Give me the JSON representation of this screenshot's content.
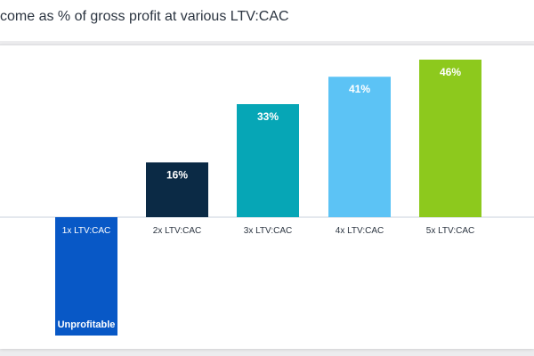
{
  "title": "come as % of gross profit at various LTV:CAC",
  "colors": {
    "background": "#ececee",
    "panel": "#ffffff",
    "axis": "#c9d2dc",
    "text_dark": "#2b3440",
    "text_light": "#ffffff"
  },
  "chart_data": {
    "type": "bar",
    "categories": [
      "1x LTV:CAC",
      "2x LTV:CAC",
      "3x LTV:CAC",
      "4x LTV:CAC",
      "5x LTV:CAC"
    ],
    "values": [
      null,
      16,
      33,
      41,
      46
    ],
    "value_labels": [
      "Unprofitable",
      "16%",
      "33%",
      "41%",
      "46%"
    ],
    "bar_colors": [
      "#0858c6",
      "#0b2a45",
      "#06a6b6",
      "#5cc3f5",
      "#8dc91d"
    ],
    "negative_bar_index": 0,
    "ylabel": "",
    "xlabel": "",
    "ylim": [
      -35,
      46
    ],
    "grid": false,
    "legend": "none"
  }
}
